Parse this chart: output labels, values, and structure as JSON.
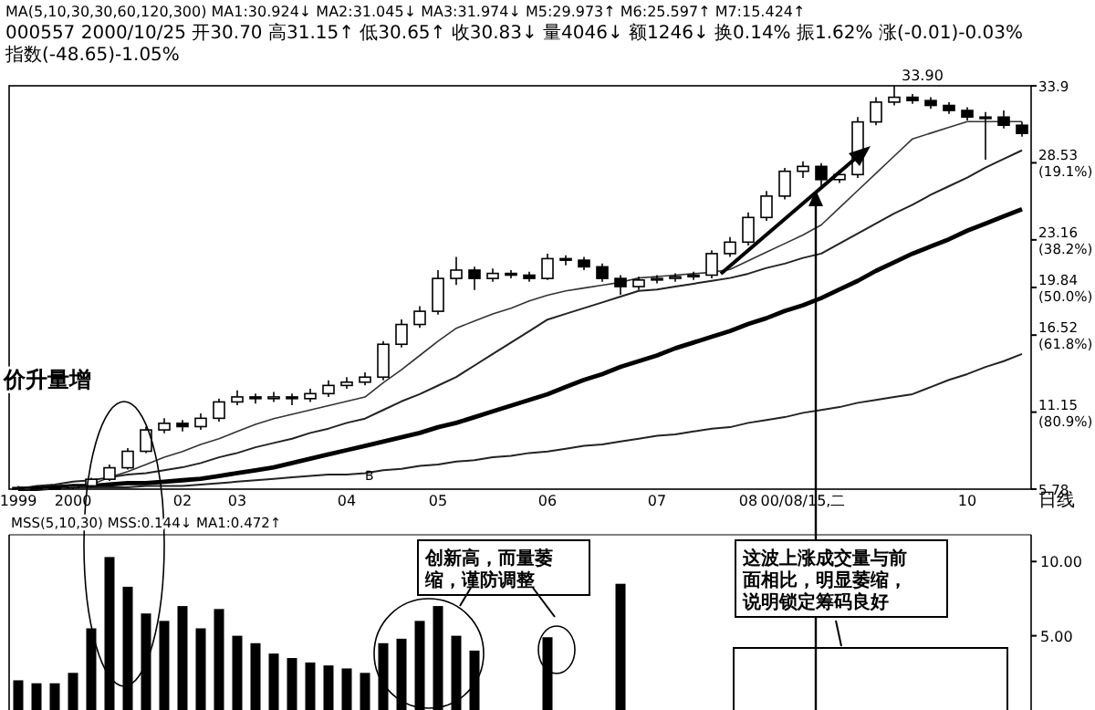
{
  "chart_data": [
    {
      "type": "candlestick",
      "title": "MA(5,10,30,30,60,120,300) MA1:30.924↓ MA2:31.045↓ MA3:31.974↓ M5:29.973↑ M6:25.597↑ M7:15.424↑",
      "subtitle": "000557 2000/10/25 开30.70 高31.15↑ 低30.65↑ 收30.83↓ 量4046↓ 额1246↓ 换0.14% 振1.62% 涨(-0.01)-0.03% 指数(-48.65)-1.05%",
      "categories": [
        "1999",
        null,
        null,
        "2000",
        null,
        null,
        null,
        null,
        null,
        "02",
        null,
        null,
        "03",
        null,
        null,
        null,
        null,
        null,
        "04",
        null,
        null,
        null,
        null,
        "05",
        null,
        null,
        null,
        null,
        null,
        "06",
        null,
        null,
        null,
        null,
        null,
        "07",
        null,
        null,
        null,
        null,
        "08",
        null,
        null,
        "00/08/15,二",
        null,
        null,
        null,
        null,
        null,
        null,
        null,
        null,
        "10",
        null,
        null,
        null
      ],
      "ohlc": [
        [
          5.89,
          6.01,
          5.78,
          5.89
        ],
        [
          5.89,
          6.01,
          5.78,
          5.89
        ],
        [
          5.89,
          6.01,
          5.78,
          5.89
        ],
        [
          5.89,
          6.12,
          5.78,
          6.01
        ],
        [
          6.01,
          6.58,
          5.89,
          6.47
        ],
        [
          6.47,
          7.5,
          6.35,
          7.27
        ],
        [
          7.27,
          8.65,
          7.15,
          8.42
        ],
        [
          8.42,
          10.14,
          8.3,
          9.91
        ],
        [
          9.91,
          10.72,
          9.68,
          10.37
        ],
        [
          10.37,
          10.6,
          9.8,
          10.14
        ],
        [
          10.14,
          11.06,
          9.91,
          10.72
        ],
        [
          10.72,
          12.09,
          10.49,
          11.86
        ],
        [
          11.86,
          12.67,
          11.63,
          12.21
        ],
        [
          12.21,
          12.44,
          11.75,
          12.09
        ],
        [
          12.09,
          12.55,
          11.86,
          12.21
        ],
        [
          12.21,
          12.44,
          11.63,
          12.09
        ],
        [
          12.09,
          12.78,
          11.86,
          12.44
        ],
        [
          12.44,
          13.36,
          12.21,
          13.01
        ],
        [
          13.01,
          13.59,
          12.78,
          13.24
        ],
        [
          13.24,
          13.93,
          13.01,
          13.59
        ],
        [
          13.59,
          16.11,
          13.36,
          15.88
        ],
        [
          15.88,
          17.61,
          15.65,
          17.26
        ],
        [
          17.26,
          18.53,
          17.03,
          18.18
        ],
        [
          18.18,
          21.05,
          17.95,
          20.47
        ],
        [
          20.47,
          21.97,
          20.01,
          21.05
        ],
        [
          21.05,
          21.28,
          19.67,
          20.47
        ],
        [
          20.47,
          21.16,
          20.24,
          20.82
        ],
        [
          20.82,
          21.05,
          20.47,
          20.7
        ],
        [
          20.7,
          20.93,
          20.24,
          20.47
        ],
        [
          20.47,
          22.2,
          20.36,
          21.85
        ],
        [
          21.85,
          22.08,
          21.39,
          21.74
        ],
        [
          21.74,
          21.97,
          21.05,
          21.28
        ],
        [
          21.28,
          21.51,
          20.24,
          20.47
        ],
        [
          20.47,
          20.7,
          19.33,
          19.9
        ],
        [
          19.9,
          20.59,
          19.67,
          20.36
        ],
        [
          20.36,
          20.7,
          20.13,
          20.47
        ],
        [
          20.47,
          20.82,
          20.24,
          20.59
        ],
        [
          20.59,
          20.93,
          20.36,
          20.7
        ],
        [
          20.7,
          22.43,
          20.47,
          22.2
        ],
        [
          22.2,
          23.35,
          21.97,
          23.0
        ],
        [
          23.0,
          25.07,
          22.77,
          24.72
        ],
        [
          24.72,
          26.56,
          24.49,
          26.21
        ],
        [
          26.21,
          28.17,
          25.98,
          27.94
        ],
        [
          27.94,
          28.63,
          27.48,
          28.28
        ],
        [
          28.28,
          28.51,
          26.9,
          27.36
        ],
        [
          27.36,
          28.05,
          27.13,
          27.71
        ],
        [
          27.71,
          31.72,
          27.48,
          31.38
        ],
        [
          31.38,
          33.1,
          31.15,
          32.76
        ],
        [
          32.76,
          33.9,
          32.53,
          33.1
        ],
        [
          33.1,
          33.33,
          32.64,
          32.87
        ],
        [
          32.87,
          33.1,
          32.3,
          32.53
        ],
        [
          32.53,
          32.76,
          31.95,
          32.18
        ],
        [
          32.18,
          32.41,
          31.49,
          31.72
        ],
        [
          31.72,
          32.07,
          28.74,
          31.72
        ],
        [
          31.72,
          32.18,
          30.92,
          31.15
        ],
        [
          31.15,
          31.38,
          30.35,
          30.58
        ]
      ],
      "series": [
        {
          "type": "line",
          "color": "#333333",
          "values": [
            5.8,
            5.9,
            6.0,
            6.0,
            6.1,
            6.6,
            7.0,
            7.5,
            8.0,
            8.4,
            8.9,
            9.3,
            9.8,
            10.3,
            10.7,
            11.0,
            11.3,
            11.6,
            11.9,
            12.2,
            13.2,
            14.1,
            15.1,
            16.1,
            17.0,
            17.5,
            18.0,
            18.4,
            18.9,
            19.3,
            19.6,
            19.8,
            20.0,
            20.2,
            20.5,
            20.6,
            20.7,
            20.8,
            20.9,
            21.1,
            21.7,
            22.3,
            22.9,
            23.5,
            24.2,
            25.4,
            26.6,
            27.8,
            29.0,
            30.2,
            30.6,
            31.0,
            31.4,
            31.4,
            31.4,
            31.4
          ]
        },
        {
          "type": "line",
          "color": "#222222",
          "values": [
            5.8,
            6.0,
            6.1,
            6.3,
            6.4,
            6.6,
            6.8,
            6.9,
            7.1,
            7.3,
            7.6,
            8.0,
            8.3,
            8.7,
            9.0,
            9.3,
            9.7,
            10.0,
            10.4,
            10.7,
            11.3,
            11.9,
            12.4,
            13.0,
            13.6,
            14.4,
            15.2,
            16.0,
            16.8,
            17.6,
            18.0,
            18.4,
            18.8,
            19.2,
            19.6,
            19.7,
            19.9,
            20.1,
            20.3,
            20.5,
            20.8,
            21.2,
            21.5,
            21.9,
            22.2,
            22.9,
            23.6,
            24.3,
            25.0,
            25.6,
            26.3,
            26.9,
            27.5,
            28.2,
            28.8,
            29.4
          ]
        },
        {
          "type": "line",
          "color": "#000000",
          "values": [
            5.8,
            5.8,
            5.9,
            6.0,
            6.0,
            6.1,
            6.2,
            6.2,
            6.3,
            6.4,
            6.5,
            6.7,
            6.9,
            7.1,
            7.3,
            7.6,
            7.9,
            8.2,
            8.5,
            8.8,
            9.1,
            9.4,
            9.7,
            10.1,
            10.4,
            10.8,
            11.2,
            11.6,
            12.0,
            12.4,
            12.9,
            13.4,
            13.8,
            14.3,
            14.7,
            15.1,
            15.6,
            16.0,
            16.4,
            16.8,
            17.3,
            17.7,
            18.2,
            18.6,
            19.1,
            19.7,
            20.3,
            21.0,
            21.6,
            22.2,
            22.7,
            23.2,
            23.8,
            24.3,
            24.8,
            25.3
          ]
        },
        {
          "type": "line",
          "color": "#222222",
          "values": [
            5.8,
            5.8,
            5.8,
            5.9,
            5.9,
            5.9,
            5.9,
            6.0,
            6.0,
            6.0,
            6.1,
            6.2,
            6.3,
            6.4,
            6.5,
            6.6,
            6.7,
            6.8,
            6.8,
            6.9,
            7.1,
            7.2,
            7.4,
            7.5,
            7.7,
            7.8,
            8.0,
            8.1,
            8.3,
            8.4,
            8.6,
            8.8,
            8.9,
            9.1,
            9.3,
            9.5,
            9.6,
            9.8,
            10.0,
            10.1,
            10.4,
            10.6,
            10.8,
            11.1,
            11.3,
            11.5,
            11.8,
            12.0,
            12.2,
            12.4,
            12.9,
            13.4,
            13.8,
            14.3,
            14.7,
            15.2
          ]
        }
      ],
      "color": "#000000",
      "ylim": [
        5.78,
        33.9
      ],
      "yticks": [
        33.9,
        {
          "value": 28.53,
          "label": "28.53 (19.1%)"
        },
        {
          "value": 23.16,
          "label": "23.16 (38.2%)"
        },
        {
          "value": 19.84,
          "label": "19.84 (50.0%)"
        },
        {
          "value": 16.52,
          "label": "16.52 (61.8%)"
        },
        {
          "value": 11.15,
          "label": "11.15 (80.9%)"
        },
        5.78
      ],
      "annotations": [
        "价升量增",
        "33.90",
        "B",
        "日线"
      ]
    },
    {
      "type": "bar",
      "subtitle": "MSS(5,10,30) MSS:0.144↓ MA1:0.472↑",
      "color": "#000000",
      "categories": [
        null,
        null,
        null,
        null,
        null,
        null,
        null,
        null,
        null,
        null,
        null,
        null,
        null,
        null,
        null,
        null,
        null,
        null,
        null,
        null,
        null,
        null,
        null,
        null,
        null,
        null,
        null,
        null,
        null,
        null,
        null,
        null,
        null,
        null,
        null,
        null,
        null,
        null,
        null,
        null,
        null,
        null,
        null,
        null,
        null,
        null,
        null,
        null,
        null,
        null,
        null,
        null,
        null,
        null,
        null,
        null
      ],
      "values": [
        2.0,
        1.8,
        1.8,
        2.5,
        5.5,
        10.3,
        8.3,
        6.5,
        6.0,
        7.0,
        5.5,
        6.8,
        5.0,
        4.5,
        3.8,
        3.5,
        3.2,
        3.0,
        2.8,
        2.5,
        4.5,
        4.8,
        6.0,
        7.0,
        5.0,
        4.0,
        null,
        null,
        null,
        4.9,
        null,
        null,
        null,
        8.5,
        null,
        null,
        null,
        null,
        null,
        null,
        null,
        null,
        null,
        null,
        null,
        null,
        null,
        null,
        null,
        null,
        null,
        null,
        null,
        null,
        null,
        null
      ],
      "ylim": [
        0,
        11.8
      ],
      "yticks": [
        {
          "value": 5,
          "label": "5.00"
        },
        {
          "value": 10,
          "label": "10.00"
        }
      ],
      "tick_labels": "y",
      "annotations": [
        "创新高，而量萎缩，谨防调整",
        "这波上涨成交量与前面相比，明显萎缩，说明锁定筹码良好"
      ]
    }
  ]
}
